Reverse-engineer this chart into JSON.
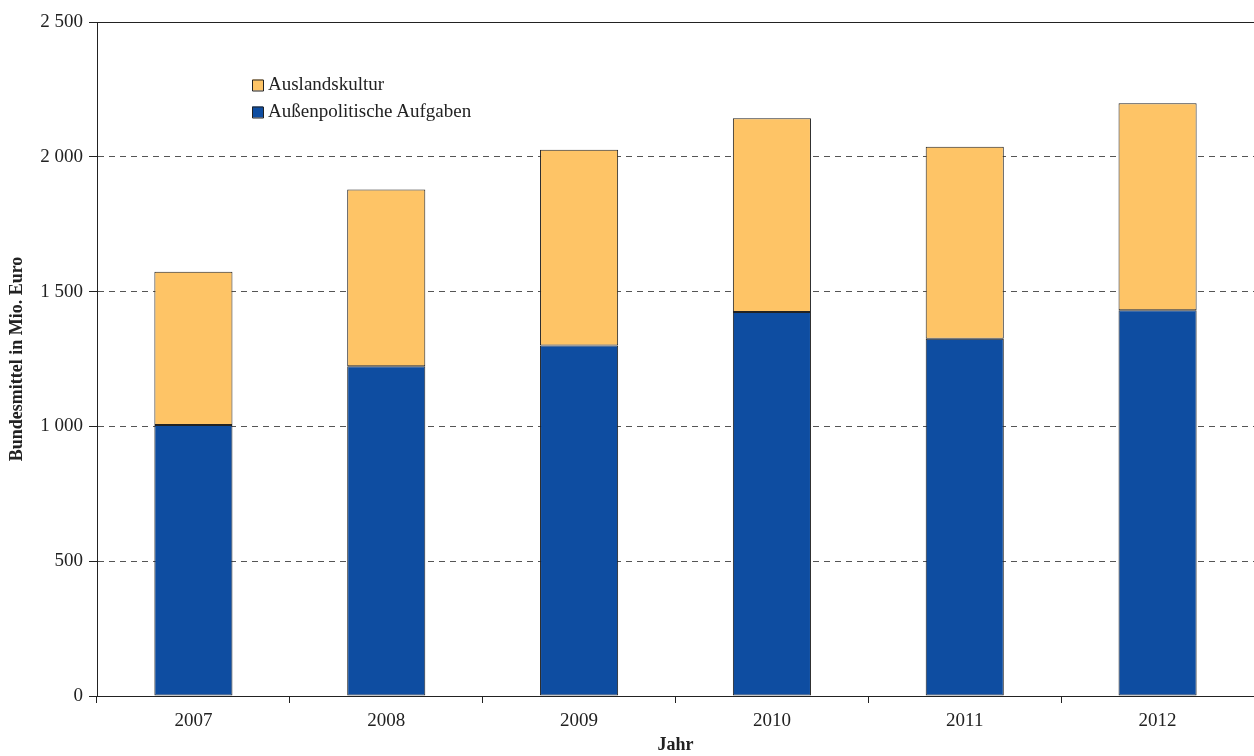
{
  "chart_data": {
    "type": "bar",
    "xlabel": "Jahr",
    "ylabel": "Bundesmittel in Mio. Euro",
    "categories": [
      "2007",
      "2008",
      "2009",
      "2010",
      "2011",
      "2012"
    ],
    "series": [
      {
        "name": "Außenpolitische Aufgaben",
        "color": "#0e4da1",
        "values": [
          1005,
          1223,
          1300,
          1424,
          1325,
          1431
        ]
      },
      {
        "name": "Auslandskultur",
        "color": "#fec466",
        "values": [
          569,
          656,
          726,
          719,
          712,
          768
        ]
      }
    ],
    "stacked": true,
    "ylim": [
      0,
      2500
    ],
    "yticks": [
      0,
      500,
      {
        "value": 1000,
        "label": "1 000"
      },
      {
        "value": 1500,
        "label": "1 500"
      },
      {
        "value": 2000,
        "label": "2 000"
      },
      {
        "value": 2500,
        "label": "2 500"
      }
    ],
    "grid": "y",
    "legend": "top left"
  }
}
